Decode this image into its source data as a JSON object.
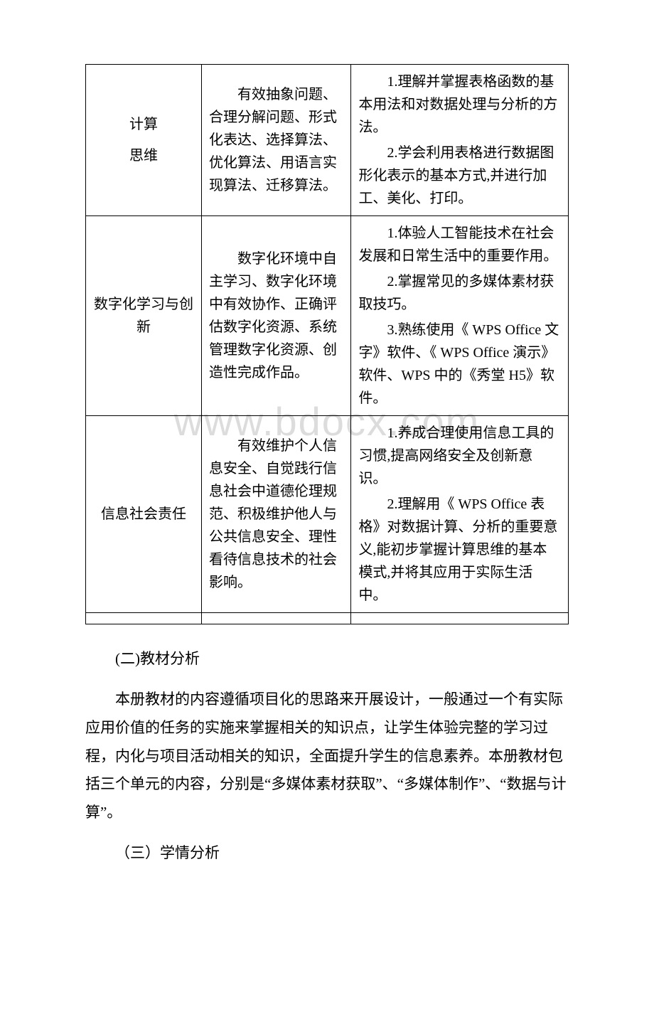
{
  "watermark": "www.bdocx.com",
  "table": {
    "columns_width_pct": [
      24,
      31,
      45
    ],
    "border_color": "#000000",
    "background_color": "#ffffff",
    "font_size_pt": 15,
    "line_height": 1.6,
    "rows": [
      {
        "col1_lines": [
          "计算",
          "思维"
        ],
        "col2": "有效抽象问题、合理分解问题、形式化表达、选择算法、优化算法、用语言实现算法、迁移算法。",
        "col3_items": [
          "1.理解并掌握表格函数的基本用法和对数据处理与分析的方法。",
          "2.学会利用表格进行数据图形化表示的基本方式,并进行加工、美化、打印。"
        ]
      },
      {
        "col1_lines": [
          "数字化学习与创新"
        ],
        "col2": "数字化环境中自主学习、数字化环境中有效协作、正确评估数字化资源、系统管理数字化资源、创造性完成作品。",
        "col3_items": [
          "1.体验人工智能技术在社会发展和日常生活中的重要作用。",
          "2.掌握常见的多媒体素材获取技巧。",
          "3.熟练使用《 WPS Office 文字》软件、《 WPS Office 演示》软件、WPS 中的《秀堂 H5》软件。"
        ]
      },
      {
        "col1_lines": [
          "信息社会责任"
        ],
        "col2": "有效维护个人信息安全、自觉践行信息社会中道德伦理规范、积极维护他人与公共信息安全、理性看待信息技术的社会影响。",
        "col3_items": [
          "1.养成合理使用信息工具的习惯,提高网络安全及创新意识。",
          "2.理解用《 WPS Office 表格》对数据计算、分析的重要意义,能初步掌握计算思维的基本模式,并将其应用于实际生活中。"
        ]
      }
    ]
  },
  "headings": {
    "section2": "(二)教材分析",
    "section3": "（三）学情分析"
  },
  "paragraphs": {
    "p1": "本册教材的内容遵循项目化的思路来开展设计，一般通过一个有实际应用价值的任务的实施来掌握相关的知识点，让学生体验完整的学习过程，内化与项目活动相关的知识，全面提升学生的信息素养。本册教材包括三个单元的内容，分别是“多媒体素材获取”、“多媒体制作”、“数据与计算”。"
  }
}
